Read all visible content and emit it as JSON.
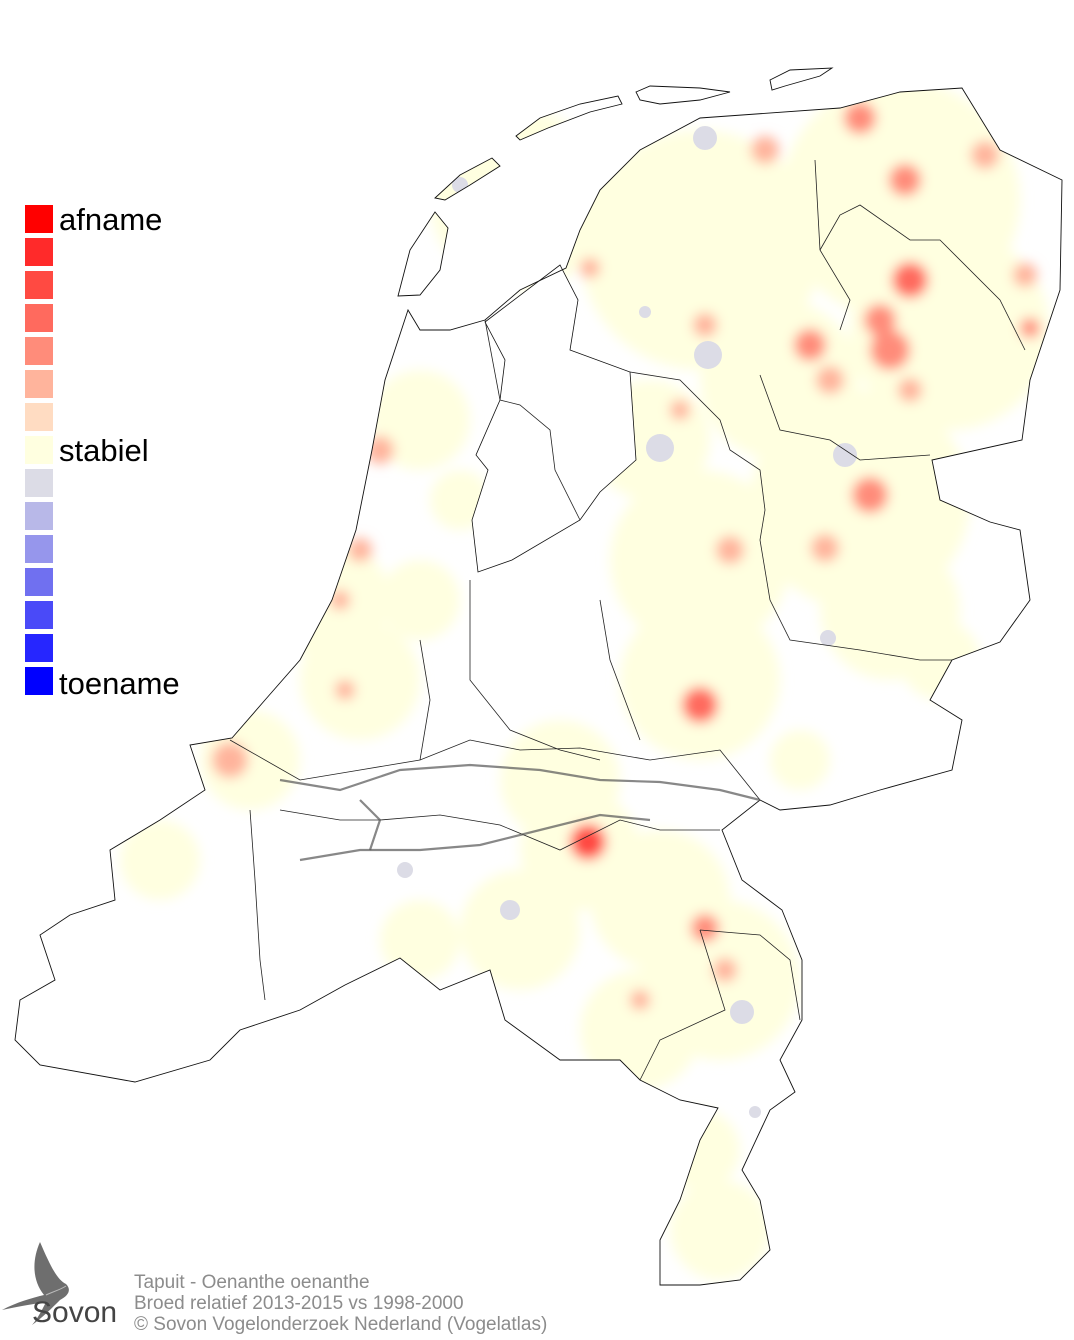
{
  "legend": {
    "label_top": "afname",
    "label_mid": "stabiel",
    "label_bottom": "toename",
    "colors": [
      "#ff0000",
      "#ff2a2a",
      "#ff4a42",
      "#ff6a5e",
      "#ff8c7a",
      "#ffb49c",
      "#ffdcc2",
      "#ffffe0",
      "#dcdce6",
      "#b8b8e8",
      "#9696ec",
      "#7070f0",
      "#4a4af8",
      "#2626ff",
      "#0000ff"
    ]
  },
  "footer": {
    "line1": "Tapuit - Oenanthe oenanthe",
    "line2": "Broed relatief 2013-2015 vs 1998-2000",
    "line3": "© Sovon Vogelonderzoek Nederland (Vogelatlas)"
  },
  "logo": {
    "text": "Sovon"
  }
}
